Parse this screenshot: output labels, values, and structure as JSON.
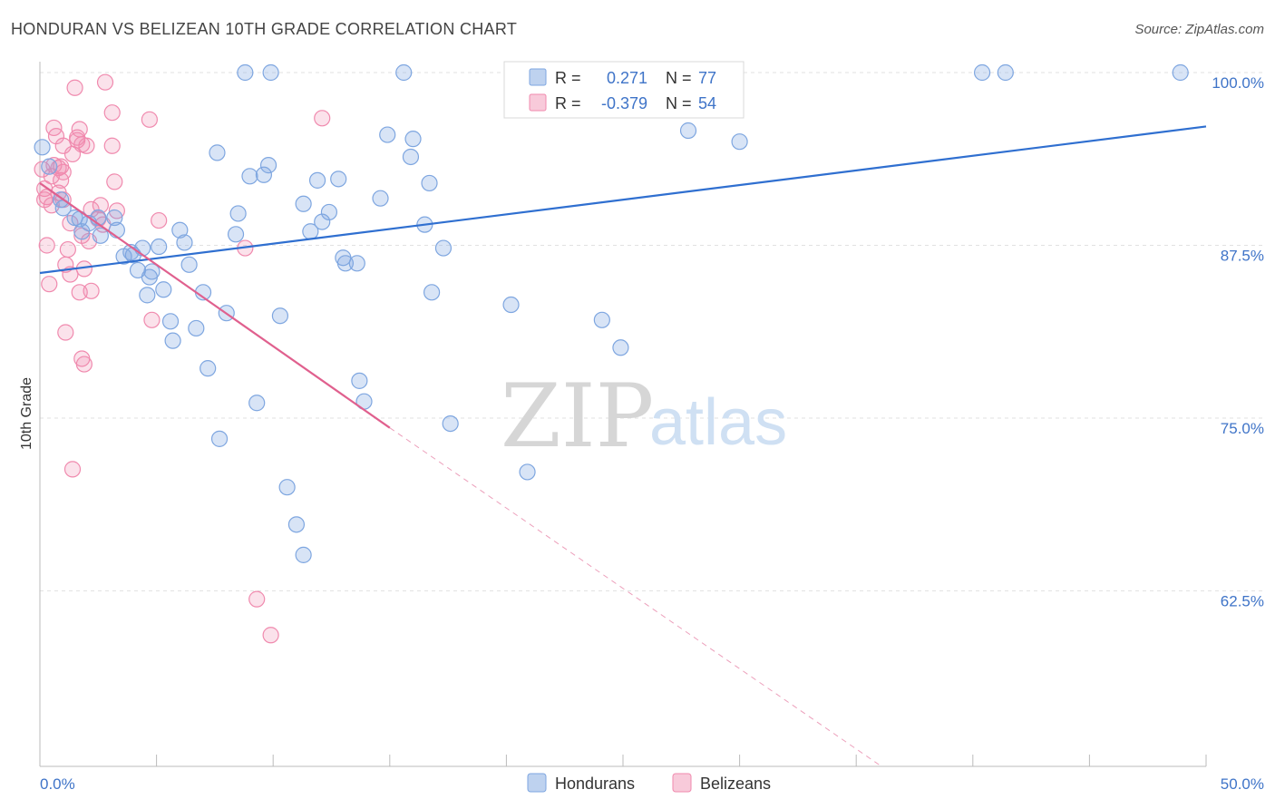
{
  "title": "HONDURAN VS BELIZEAN 10TH GRADE CORRELATION CHART",
  "source": "Source: ZipAtlas.com",
  "watermark": {
    "zip": "ZIP",
    "atlas": "atlas"
  },
  "colors": {
    "blue": "#7ea6e0",
    "blue_fill": "rgba(126,166,224,0.30)",
    "blue_line": "#2f6fd0",
    "pink": "#f08aae",
    "pink_fill": "rgba(240,138,174,0.25)",
    "pink_line": "#e0608e",
    "axis_text": "#3f74c8"
  },
  "chart_data": {
    "type": "scatter",
    "title": "HONDURAN VS BELIZEAN 10TH GRADE CORRELATION CHART",
    "xlabel": "",
    "ylabel": "10th Grade",
    "xlim": [
      0,
      50
    ],
    "ylim": [
      50,
      100
    ],
    "x_tick_labels": [
      "0.0%",
      "50.0%"
    ],
    "y_ticks": [
      62.5,
      75.0,
      87.5,
      100.0
    ],
    "y_tick_labels": [
      "62.5%",
      "75.0%",
      "87.5%",
      "100.0%"
    ],
    "grid": true,
    "legend": {
      "placement": "top-center",
      "entries": [
        {
          "r_label": "R =",
          "r_value": "0.271",
          "n_label": "N =",
          "n_value": "77"
        },
        {
          "r_label": "R =",
          "r_value": "-0.379",
          "n_label": "N =",
          "n_value": "54"
        }
      ]
    },
    "series": [
      {
        "name": "Hondurans",
        "trend": {
          "x": [
            0,
            50
          ],
          "y": [
            85.5,
            96.1
          ]
        },
        "points": [
          [
            0.1,
            94.6
          ],
          [
            0.4,
            93.2
          ],
          [
            0.9,
            90.8
          ],
          [
            1.0,
            90.2
          ],
          [
            1.5,
            89.5
          ],
          [
            1.7,
            89.4
          ],
          [
            1.8,
            88.5
          ],
          [
            2.1,
            89.1
          ],
          [
            2.6,
            88.2
          ],
          [
            3.2,
            89.5
          ],
          [
            3.3,
            88.6
          ],
          [
            4.0,
            86.8
          ],
          [
            3.6,
            86.7
          ],
          [
            4.2,
            85.7
          ],
          [
            4.4,
            87.3
          ],
          [
            4.6,
            83.9
          ],
          [
            4.7,
            85.2
          ],
          [
            4.8,
            85.6
          ],
          [
            5.1,
            87.4
          ],
          [
            5.3,
            84.3
          ],
          [
            5.6,
            82.0
          ],
          [
            5.7,
            80.6
          ],
          [
            6.0,
            88.6
          ],
          [
            6.2,
            87.7
          ],
          [
            6.4,
            86.1
          ],
          [
            6.7,
            81.5
          ],
          [
            7.0,
            84.1
          ],
          [
            7.2,
            78.6
          ],
          [
            7.6,
            94.2
          ],
          [
            7.7,
            73.5
          ],
          [
            8.0,
            82.6
          ],
          [
            8.4,
            88.3
          ],
          [
            8.5,
            89.8
          ],
          [
            8.8,
            100.0
          ],
          [
            9.0,
            92.5
          ],
          [
            9.3,
            76.1
          ],
          [
            9.6,
            92.6
          ],
          [
            9.8,
            93.3
          ],
          [
            9.9,
            100.0
          ],
          [
            10.3,
            82.4
          ],
          [
            10.6,
            70.0
          ],
          [
            11.0,
            67.3
          ],
          [
            11.3,
            90.5
          ],
          [
            11.6,
            88.5
          ],
          [
            11.9,
            92.2
          ],
          [
            12.1,
            89.2
          ],
          [
            12.4,
            89.9
          ],
          [
            12.8,
            92.3
          ],
          [
            13.0,
            86.6
          ],
          [
            13.1,
            86.2
          ],
          [
            13.6,
            86.2
          ],
          [
            13.7,
            77.7
          ],
          [
            13.9,
            76.2
          ],
          [
            14.6,
            90.9
          ],
          [
            14.9,
            95.5
          ],
          [
            15.6,
            100.0
          ],
          [
            15.9,
            93.9
          ],
          [
            16.0,
            95.2
          ],
          [
            16.5,
            89.0
          ],
          [
            16.7,
            92.0
          ],
          [
            16.8,
            84.1
          ],
          [
            17.3,
            87.3
          ],
          [
            17.6,
            74.6
          ],
          [
            11.3,
            65.1
          ],
          [
            20.2,
            83.2
          ],
          [
            20.9,
            71.1
          ],
          [
            24.1,
            82.1
          ],
          [
            24.9,
            80.1
          ],
          [
            27.0,
            100.0
          ],
          [
            27.8,
            95.8
          ],
          [
            28.2,
            100.0
          ],
          [
            30.0,
            95.0
          ],
          [
            40.4,
            100.0
          ],
          [
            41.4,
            100.0
          ],
          [
            48.9,
            100.0
          ],
          [
            2.5,
            89.5
          ],
          [
            3.9,
            87.0
          ]
        ]
      },
      {
        "name": "Belizeans",
        "trend": {
          "x": [
            0,
            15
          ],
          "y": [
            92.0,
            74.3
          ]
        },
        "trend_ext": {
          "x": [
            15,
            36
          ],
          "y": [
            74.3,
            49.9
          ]
        },
        "points": [
          [
            0.1,
            93.0
          ],
          [
            0.2,
            91.6
          ],
          [
            0.2,
            90.8
          ],
          [
            0.3,
            87.5
          ],
          [
            0.4,
            84.7
          ],
          [
            0.5,
            92.5
          ],
          [
            0.6,
            93.3
          ],
          [
            0.6,
            96.0
          ],
          [
            0.7,
            95.4
          ],
          [
            0.8,
            91.3
          ],
          [
            0.9,
            93.2
          ],
          [
            0.9,
            92.2
          ],
          [
            1.0,
            94.7
          ],
          [
            1.0,
            90.8
          ],
          [
            1.1,
            81.2
          ],
          [
            1.1,
            86.1
          ],
          [
            1.2,
            87.2
          ],
          [
            1.3,
            85.4
          ],
          [
            1.3,
            89.1
          ],
          [
            1.4,
            71.3
          ],
          [
            1.4,
            94.1
          ],
          [
            1.5,
            98.9
          ],
          [
            1.6,
            95.3
          ],
          [
            1.7,
            95.9
          ],
          [
            1.7,
            84.1
          ],
          [
            1.8,
            88.2
          ],
          [
            1.8,
            94.8
          ],
          [
            1.8,
            79.3
          ],
          [
            1.9,
            85.8
          ],
          [
            1.9,
            78.9
          ],
          [
            2.0,
            94.7
          ],
          [
            2.1,
            87.8
          ],
          [
            2.2,
            84.2
          ],
          [
            2.2,
            90.1
          ],
          [
            2.5,
            89.4
          ],
          [
            2.6,
            90.4
          ],
          [
            2.8,
            99.3
          ],
          [
            3.1,
            94.7
          ],
          [
            3.1,
            97.1
          ],
          [
            3.2,
            92.1
          ],
          [
            3.3,
            90.0
          ],
          [
            4.7,
            96.6
          ],
          [
            4.8,
            82.1
          ],
          [
            5.1,
            89.3
          ],
          [
            8.8,
            87.3
          ],
          [
            9.3,
            61.9
          ],
          [
            9.9,
            59.3
          ],
          [
            12.1,
            96.7
          ],
          [
            0.3,
            91.0
          ],
          [
            0.5,
            90.4
          ],
          [
            0.8,
            93.1
          ],
          [
            1.0,
            92.8
          ],
          [
            2.7,
            89.0
          ],
          [
            1.6,
            95.1
          ]
        ]
      }
    ]
  },
  "bottom_legend": [
    {
      "label": "Hondurans"
    },
    {
      "label": "Belizeans"
    }
  ]
}
